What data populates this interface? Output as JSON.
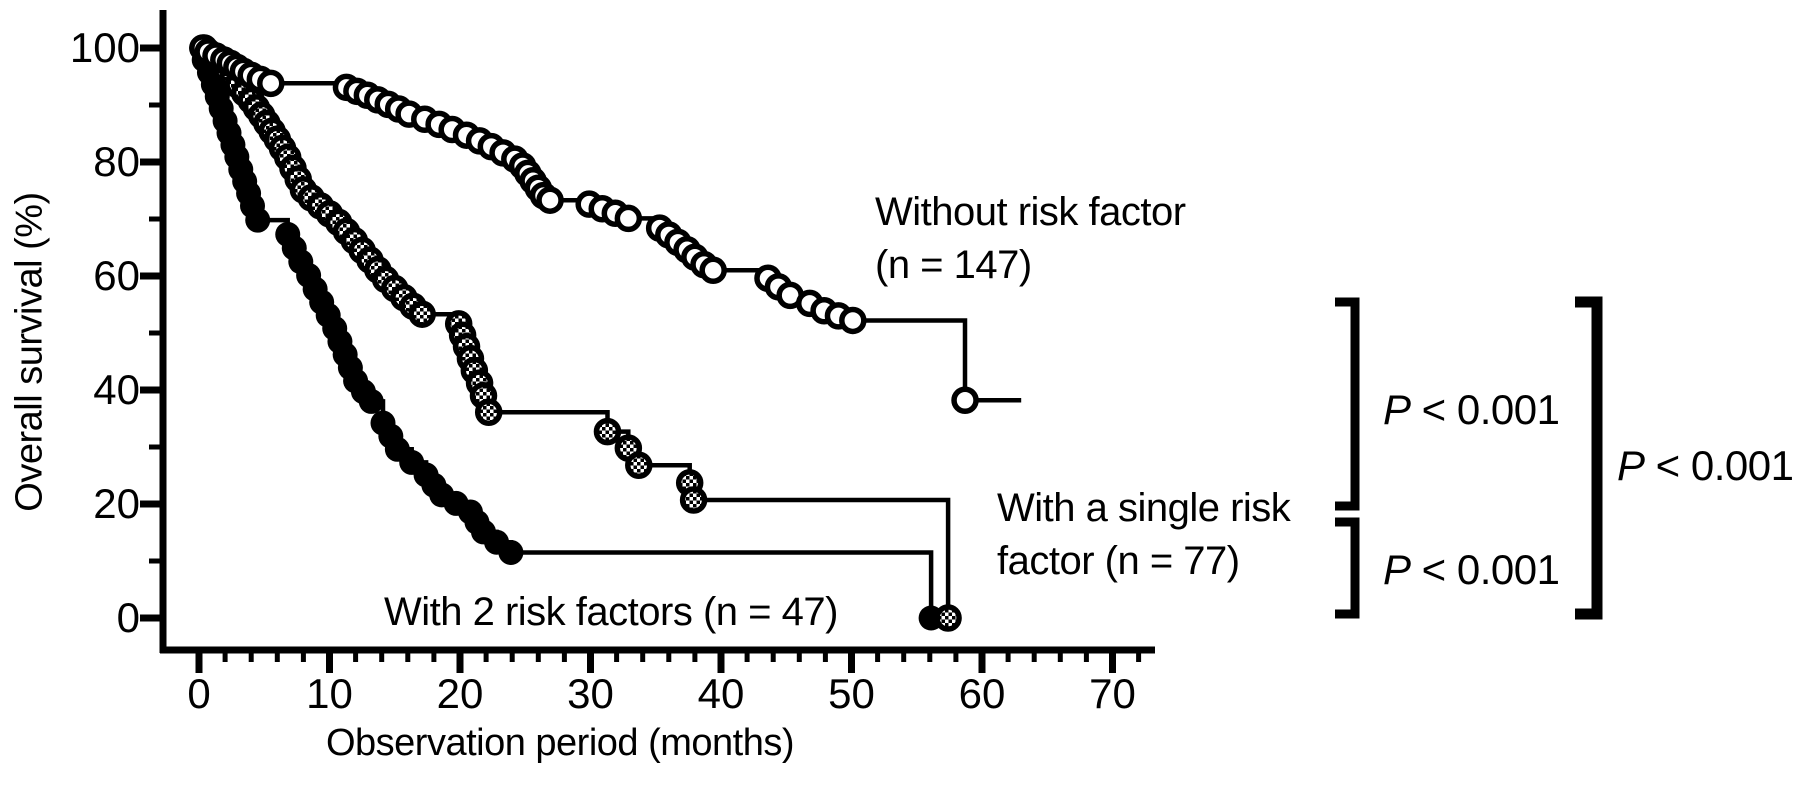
{
  "colors": {
    "ink": "#000000",
    "background": "#ffffff"
  },
  "chart_data": {
    "type": "line",
    "subtype": "kaplan-meier-step-curves",
    "title": "",
    "xlabel": "Observation period (months)",
    "ylabel": "Overall survival (%)",
    "xlim": [
      0,
      73
    ],
    "ylim": [
      0,
      100
    ],
    "grid": false,
    "x_axis": {
      "major_ticks": [
        0,
        10,
        20,
        30,
        40,
        50,
        60,
        70
      ],
      "tick_labels": [
        "0",
        "10",
        "20",
        "30",
        "40",
        "50",
        "60",
        "70"
      ],
      "minor_tick_step": 2
    },
    "y_axis": {
      "major_ticks": [
        0,
        20,
        40,
        60,
        80,
        100
      ],
      "tick_labels": [
        "0",
        "20",
        "40",
        "60",
        "80",
        "100"
      ],
      "minor_ticks": [
        10,
        30,
        50,
        70,
        90
      ]
    },
    "series": [
      {
        "id": "two-risk-factors",
        "name": "With 2 risk factors",
        "n": 47,
        "label_line1": "With 2 risk factors (n = 47)",
        "label_line2": "",
        "marker": "filled-circle",
        "t_end": 56.7,
        "points": [
          [
            0.2,
            100
          ],
          [
            0.4,
            97.9
          ],
          [
            0.8,
            95.7
          ],
          [
            1.1,
            93.6
          ],
          [
            1.4,
            91.5
          ],
          [
            1.7,
            89.4
          ],
          [
            2.0,
            87.2
          ],
          [
            2.3,
            85.1
          ],
          [
            2.6,
            83.0
          ],
          [
            2.9,
            80.9
          ],
          [
            3.2,
            78.7
          ],
          [
            3.5,
            76.6
          ],
          [
            3.8,
            74.5
          ],
          [
            4.1,
            72.3
          ],
          [
            4.5,
            69.8
          ],
          [
            6.8,
            67.3
          ],
          [
            7.3,
            64.9
          ],
          [
            7.8,
            62.5
          ],
          [
            8.4,
            60.1
          ],
          [
            8.9,
            57.7
          ],
          [
            9.4,
            55.4
          ],
          [
            9.9,
            53.1
          ],
          [
            10.4,
            50.8
          ],
          [
            10.8,
            48.5
          ],
          [
            11.2,
            46.2
          ],
          [
            11.6,
            43.9
          ],
          [
            12.0,
            41.6
          ],
          [
            12.6,
            39.7
          ],
          [
            13.2,
            38.0
          ],
          [
            14.1,
            34.2
          ],
          [
            14.7,
            31.9
          ],
          [
            15.2,
            29.6
          ],
          [
            16.3,
            27.3
          ],
          [
            17.4,
            25.1
          ],
          [
            18.0,
            23.3
          ],
          [
            18.6,
            21.6
          ],
          [
            19.7,
            20.1
          ],
          [
            20.8,
            18.6
          ],
          [
            21.3,
            16.8
          ],
          [
            21.8,
            15.1
          ],
          [
            22.8,
            13.3
          ],
          [
            23.9,
            11.5
          ],
          [
            56.1,
            0
          ]
        ]
      },
      {
        "id": "single-risk-factor",
        "name": "With a single risk factor",
        "n": 77,
        "label_line1": "With a single risk",
        "label_line2": "factor (n = 77)",
        "marker": "checkered-circle",
        "t_end": 58.3,
        "points": [
          [
            0.4,
            100
          ],
          [
            1.0,
            98.7
          ],
          [
            1.6,
            97.4
          ],
          [
            2.1,
            96.1
          ],
          [
            2.6,
            94.8
          ],
          [
            3.0,
            93.5
          ],
          [
            3.5,
            92.1
          ],
          [
            4.0,
            90.8
          ],
          [
            4.4,
            89.5
          ],
          [
            4.8,
            88.2
          ],
          [
            5.2,
            86.8
          ],
          [
            5.6,
            85.4
          ],
          [
            6.0,
            84.0
          ],
          [
            6.4,
            82.4
          ],
          [
            6.8,
            80.8
          ],
          [
            7.2,
            78.9
          ],
          [
            7.6,
            77.0
          ],
          [
            8.0,
            75.1
          ],
          [
            8.6,
            73.7
          ],
          [
            9.3,
            72.3
          ],
          [
            10.0,
            70.9
          ],
          [
            10.7,
            69.4
          ],
          [
            11.3,
            67.8
          ],
          [
            11.9,
            66.2
          ],
          [
            12.5,
            64.5
          ],
          [
            13.1,
            62.8
          ],
          [
            13.7,
            61.1
          ],
          [
            14.3,
            59.4
          ],
          [
            15.0,
            57.8
          ],
          [
            15.7,
            56.2
          ],
          [
            16.4,
            54.7
          ],
          [
            17.1,
            53.3
          ],
          [
            19.9,
            51.6
          ],
          [
            20.2,
            49.6
          ],
          [
            20.5,
            47.6
          ],
          [
            20.8,
            45.5
          ],
          [
            21.1,
            43.4
          ],
          [
            21.5,
            41.2
          ],
          [
            21.8,
            39.0
          ],
          [
            22.2,
            36.1
          ],
          [
            31.3,
            32.7
          ],
          [
            32.9,
            29.8
          ],
          [
            33.7,
            26.8
          ],
          [
            37.6,
            23.7
          ],
          [
            37.9,
            20.7
          ],
          [
            57.4,
            0
          ]
        ]
      },
      {
        "id": "without-risk-factor",
        "name": "Without risk factor",
        "n": 147,
        "label_line1": "Without risk factor",
        "label_line2": "(n = 147)",
        "marker": "open-circle",
        "t_end": 63.0,
        "points": [
          [
            0.3,
            100
          ],
          [
            0.7,
            99.3
          ],
          [
            1.3,
            98.6
          ],
          [
            1.9,
            97.9
          ],
          [
            2.4,
            97.3
          ],
          [
            2.9,
            96.6
          ],
          [
            3.4,
            95.9
          ],
          [
            4.0,
            95.2
          ],
          [
            4.7,
            94.5
          ],
          [
            5.5,
            93.8
          ],
          [
            11.3,
            93.1
          ],
          [
            12.1,
            92.4
          ],
          [
            12.9,
            91.7
          ],
          [
            13.7,
            90.9
          ],
          [
            14.5,
            90.1
          ],
          [
            15.3,
            89.3
          ],
          [
            16.1,
            88.4
          ],
          [
            17.3,
            87.5
          ],
          [
            18.4,
            86.6
          ],
          [
            19.4,
            85.7
          ],
          [
            20.5,
            84.7
          ],
          [
            21.5,
            83.7
          ],
          [
            22.4,
            82.7
          ],
          [
            23.3,
            81.6
          ],
          [
            24.2,
            80.5
          ],
          [
            24.8,
            79.3
          ],
          [
            25.2,
            78.0
          ],
          [
            25.6,
            76.7
          ],
          [
            26.0,
            75.4
          ],
          [
            26.4,
            74.1
          ],
          [
            26.9,
            73.3
          ],
          [
            29.9,
            72.6
          ],
          [
            30.9,
            71.8
          ],
          [
            31.9,
            71.0
          ],
          [
            32.9,
            70.1
          ],
          [
            35.3,
            68.4
          ],
          [
            36.0,
            67.2
          ],
          [
            36.7,
            65.9
          ],
          [
            37.4,
            64.6
          ],
          [
            38.0,
            63.3
          ],
          [
            38.7,
            62.0
          ],
          [
            39.4,
            61.0
          ],
          [
            43.6,
            59.6
          ],
          [
            44.4,
            58.1
          ],
          [
            45.3,
            56.6
          ],
          [
            46.8,
            55.2
          ],
          [
            47.9,
            53.9
          ],
          [
            49.0,
            53.0
          ],
          [
            50.1,
            52.2
          ],
          [
            58.7,
            38.2
          ]
        ]
      }
    ],
    "comparisons": [
      {
        "groups": "Without risk factor vs With a single risk factor",
        "p": "P < 0.001",
        "bracket": "small-top"
      },
      {
        "groups": "With a single risk factor vs With 2 risk factors",
        "p": "P < 0.001",
        "bracket": "small-bottom"
      },
      {
        "groups": "Without risk factor vs With 2 risk factors",
        "p": "P < 0.001",
        "bracket": "large-right"
      }
    ]
  }
}
